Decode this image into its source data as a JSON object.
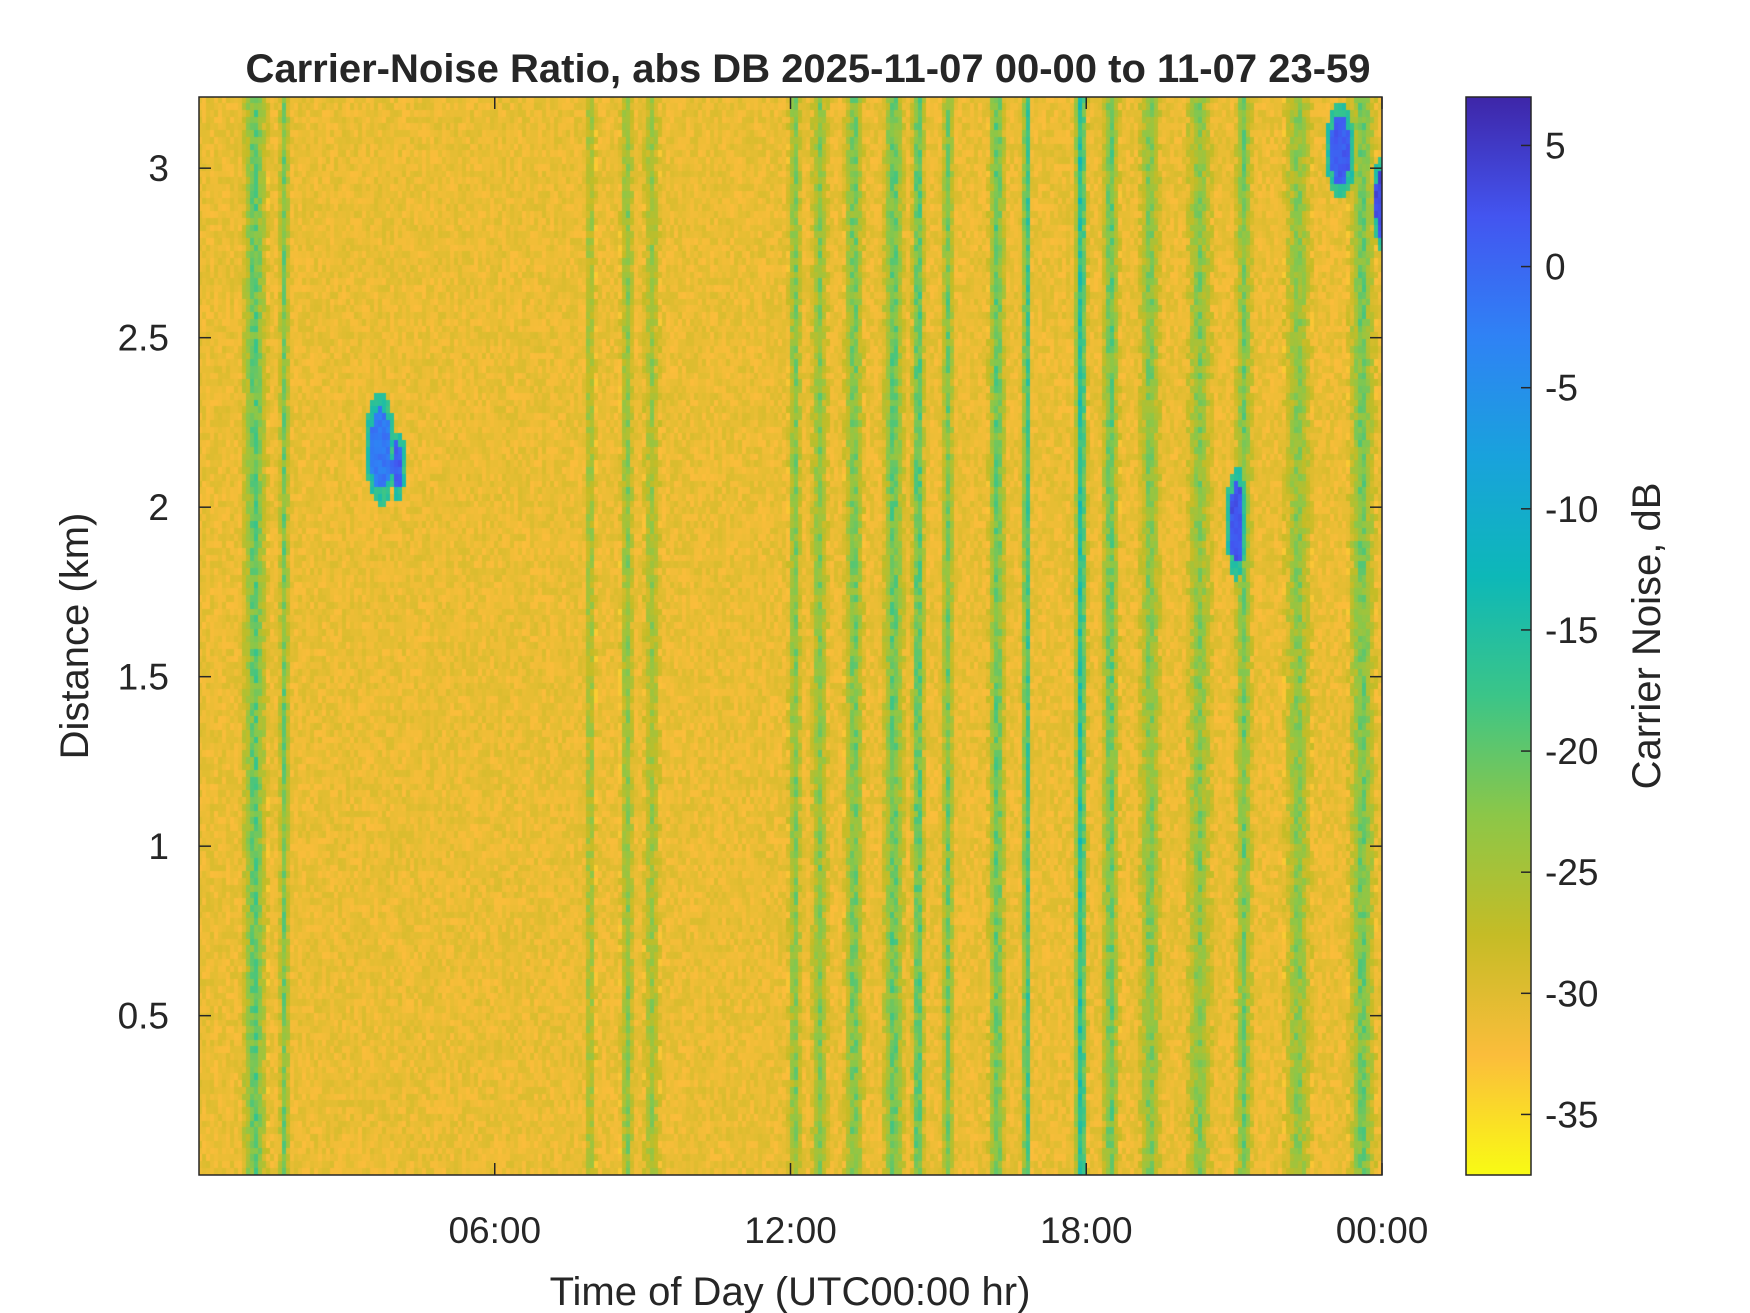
{
  "chart_data": {
    "type": "heatmap",
    "title": "Carrier-Noise Ratio, abs DB 2025-11-07 00-00 to 11-07 23-59",
    "xlabel": "Time of Day (UTC00:00 hr)",
    "ylabel": "Distance (km)",
    "x_range_hours": [
      0,
      24
    ],
    "x_ticks": [
      {
        "value": 6,
        "label": "06:00"
      },
      {
        "value": 12,
        "label": "12:00"
      },
      {
        "value": 18,
        "label": "18:00"
      },
      {
        "value": 24,
        "label": "00:00"
      }
    ],
    "y_range_km": [
      0.03,
      3.21
    ],
    "y_ticks": [
      {
        "value": 0.5,
        "label": "0.5"
      },
      {
        "value": 1,
        "label": "1"
      },
      {
        "value": 1.5,
        "label": "1.5"
      },
      {
        "value": 2,
        "label": "2"
      },
      {
        "value": 2.5,
        "label": "2.5"
      },
      {
        "value": 3,
        "label": "3"
      }
    ],
    "colorbar": {
      "label": "Carrier Noise, dB",
      "range": [
        -37.5,
        7
      ],
      "ticks": [
        {
          "value": 5,
          "label": "5"
        },
        {
          "value": 0,
          "label": "0"
        },
        {
          "value": -5,
          "label": "-5"
        },
        {
          "value": -10,
          "label": "-10"
        },
        {
          "value": -15,
          "label": "-15"
        },
        {
          "value": -20,
          "label": "-20"
        },
        {
          "value": -25,
          "label": "-25"
        },
        {
          "value": -30,
          "label": "-30"
        },
        {
          "value": -35,
          "label": "-35"
        }
      ],
      "colormap": "parula-reversed",
      "colors": [
        "#3e26a8",
        "#4355f0",
        "#2f82f5",
        "#19a2dc",
        "#0db8b8",
        "#3bc588",
        "#8cc748",
        "#c5bc26",
        "#fbbd3b",
        "#f9fb14"
      ]
    },
    "background_value_db": -31,
    "bands": [
      {
        "t": 1.15,
        "w": 0.28,
        "db": -19
      },
      {
        "t": 1.75,
        "w": 0.12,
        "db": -21
      },
      {
        "t": 7.95,
        "w": 0.12,
        "db": -23
      },
      {
        "t": 8.7,
        "w": 0.15,
        "db": -22
      },
      {
        "t": 9.2,
        "w": 0.18,
        "db": -24
      },
      {
        "t": 12.1,
        "w": 0.15,
        "db": -21
      },
      {
        "t": 12.6,
        "w": 0.2,
        "db": -22
      },
      {
        "t": 13.3,
        "w": 0.22,
        "db": -20
      },
      {
        "t": 14.1,
        "w": 0.25,
        "db": -19
      },
      {
        "t": 14.6,
        "w": 0.15,
        "db": -17
      },
      {
        "t": 15.2,
        "w": 0.15,
        "db": -21
      },
      {
        "t": 16.2,
        "w": 0.2,
        "db": -19
      },
      {
        "t": 16.8,
        "w": 0.1,
        "db": -14
      },
      {
        "t": 17.9,
        "w": 0.15,
        "db": -13
      },
      {
        "t": 18.5,
        "w": 0.2,
        "db": -19
      },
      {
        "t": 19.3,
        "w": 0.25,
        "db": -21
      },
      {
        "t": 20.3,
        "w": 0.3,
        "db": -22
      },
      {
        "t": 21.2,
        "w": 0.2,
        "db": -21
      },
      {
        "t": 22.3,
        "w": 0.3,
        "db": -22
      },
      {
        "t": 23.6,
        "w": 0.3,
        "db": -20
      }
    ],
    "blobs": [
      {
        "t": 3.7,
        "d": 2.17,
        "rt": 0.22,
        "rd": 0.12,
        "db": -2
      },
      {
        "t": 4.05,
        "d": 2.12,
        "rt": 0.12,
        "rd": 0.07,
        "db": 1
      },
      {
        "t": 21.05,
        "d": 1.95,
        "rt": 0.15,
        "rd": 0.12,
        "db": 2
      },
      {
        "t": 23.15,
        "d": 3.05,
        "rt": 0.22,
        "rd": 0.1,
        "db": 1
      },
      {
        "t": 23.95,
        "d": 2.9,
        "rt": 0.08,
        "rd": 0.1,
        "db": 3
      }
    ]
  }
}
